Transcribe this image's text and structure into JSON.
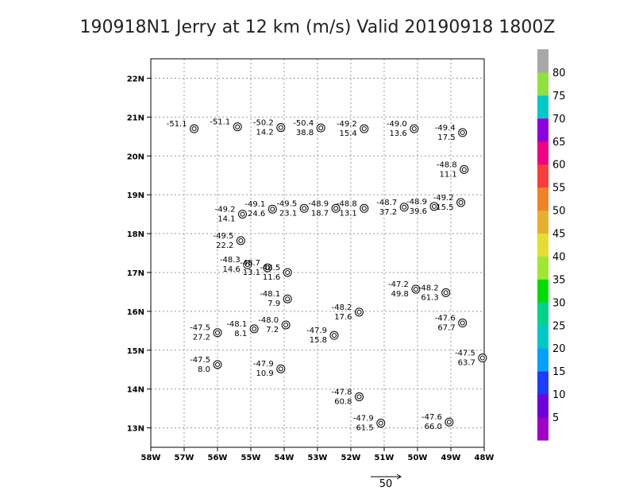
{
  "chart_data": {
    "type": "scatter",
    "title": "190918N1 Jerry at 12 km (m/s) Valid 20190918 1800Z",
    "xlim": [
      -58,
      -48
    ],
    "ylim": [
      12.5,
      22.5
    ],
    "x_ticks": [
      {
        "v": -58,
        "label": "58W"
      },
      {
        "v": -57,
        "label": "57W"
      },
      {
        "v": -56,
        "label": "56W"
      },
      {
        "v": -55,
        "label": "55W"
      },
      {
        "v": -54,
        "label": "54W"
      },
      {
        "v": -53,
        "label": "53W"
      },
      {
        "v": -52,
        "label": "52W"
      },
      {
        "v": -51,
        "label": "51W"
      },
      {
        "v": -50,
        "label": "50W"
      },
      {
        "v": -49,
        "label": "49W"
      },
      {
        "v": -48,
        "label": "48W"
      }
    ],
    "y_ticks": [
      {
        "v": 13,
        "label": "13N"
      },
      {
        "v": 14,
        "label": "14N"
      },
      {
        "v": 15,
        "label": "15N"
      },
      {
        "v": 16,
        "label": "16N"
      },
      {
        "v": 17,
        "label": "17N"
      },
      {
        "v": 18,
        "label": "18N"
      },
      {
        "v": 19,
        "label": "19N"
      },
      {
        "v": 20,
        "label": "20N"
      },
      {
        "v": 21,
        "label": "21N"
      },
      {
        "v": 22,
        "label": "22N"
      }
    ],
    "grid": true,
    "reference_vector": {
      "label": "50",
      "speed": 50
    },
    "colorbar": {
      "labels": [
        "5",
        "10",
        "15",
        "20",
        "25",
        "30",
        "35",
        "40",
        "45",
        "50",
        "55",
        "60",
        "65",
        "70",
        "75",
        "80"
      ],
      "colors": [
        "#a000c8",
        "#6e00dc",
        "#1e3cff",
        "#00a0ff",
        "#00c8c8",
        "#00d28c",
        "#00dc00",
        "#a0e632",
        "#e6dc32",
        "#e6af2d",
        "#f08228",
        "#fa3c3c",
        "#f00082",
        "#8c00e0",
        "#00c8c8",
        "#90e040",
        "#a8a8a8"
      ]
    },
    "points": [
      {
        "lon": -56.7,
        "lat": 20.7,
        "temp": "-51.1",
        "speed": ""
      },
      {
        "lon": -55.4,
        "lat": 20.75,
        "temp": "-51.1",
        "speed": ""
      },
      {
        "lon": -54.1,
        "lat": 20.73,
        "temp": "-50.2",
        "speed": "14.2"
      },
      {
        "lon": -52.9,
        "lat": 20.72,
        "temp": "-50.4",
        "speed": "38.8"
      },
      {
        "lon": -51.6,
        "lat": 20.7,
        "temp": "-49.2",
        "speed": "15.4"
      },
      {
        "lon": -50.1,
        "lat": 20.7,
        "temp": "-49.0",
        "speed": "13.6"
      },
      {
        "lon": -48.65,
        "lat": 20.6,
        "temp": "-49.4",
        "speed": "17.5"
      },
      {
        "lon": -48.6,
        "lat": 19.65,
        "temp": "-48.8",
        "speed": "11.1"
      },
      {
        "lon": -55.25,
        "lat": 18.5,
        "temp": "-49.2",
        "speed": "14.1"
      },
      {
        "lon": -54.35,
        "lat": 18.63,
        "temp": "-49.1",
        "speed": "24.6"
      },
      {
        "lon": -53.4,
        "lat": 18.65,
        "temp": "-49.5",
        "speed": "23.1"
      },
      {
        "lon": -52.45,
        "lat": 18.65,
        "temp": "-48.9",
        "speed": "18.7"
      },
      {
        "lon": -51.6,
        "lat": 18.65,
        "temp": "-48.8",
        "speed": "13.1"
      },
      {
        "lon": -50.4,
        "lat": 18.68,
        "temp": "-48.7",
        "speed": "37.2"
      },
      {
        "lon": -49.5,
        "lat": 18.7,
        "temp": "-48.9",
        "speed": "39.6"
      },
      {
        "lon": -48.7,
        "lat": 18.8,
        "temp": "-49.2",
        "speed": "15.5"
      },
      {
        "lon": -55.3,
        "lat": 17.82,
        "temp": "-49.5",
        "speed": "22.2"
      },
      {
        "lon": -55.1,
        "lat": 17.2,
        "temp": "-48.3",
        "speed": "14.6"
      },
      {
        "lon": -54.5,
        "lat": 17.12,
        "temp": "-48.7",
        "speed": "13.1"
      },
      {
        "lon": -53.9,
        "lat": 17.0,
        "temp": "-48.5",
        "speed": "11.6"
      },
      {
        "lon": -53.9,
        "lat": 16.32,
        "temp": "-48.1",
        "speed": "7.9"
      },
      {
        "lon": -50.05,
        "lat": 16.57,
        "temp": "-47.2",
        "speed": "49.8"
      },
      {
        "lon": -49.15,
        "lat": 16.48,
        "temp": "-48.2",
        "speed": "61.3"
      },
      {
        "lon": -51.75,
        "lat": 15.98,
        "temp": "-48.2",
        "speed": "17.6"
      },
      {
        "lon": -53.95,
        "lat": 15.65,
        "temp": "-48.0",
        "speed": "7.2"
      },
      {
        "lon": -54.9,
        "lat": 15.55,
        "temp": "-48.1",
        "speed": "8.1"
      },
      {
        "lon": -56.0,
        "lat": 15.45,
        "temp": "-47.5",
        "speed": "27.2"
      },
      {
        "lon": -52.5,
        "lat": 15.38,
        "temp": "-47.9",
        "speed": "15.8"
      },
      {
        "lon": -48.65,
        "lat": 15.7,
        "temp": "-47.6",
        "speed": "67.7"
      },
      {
        "lon": -48.05,
        "lat": 14.8,
        "temp": "-47.5",
        "speed": "63.7"
      },
      {
        "lon": -56.0,
        "lat": 14.63,
        "temp": "-47.5",
        "speed": "8.0"
      },
      {
        "lon": -54.1,
        "lat": 14.52,
        "temp": "-47.9",
        "speed": "10.9"
      },
      {
        "lon": -51.75,
        "lat": 13.8,
        "temp": "-47.8",
        "speed": "60.8"
      },
      {
        "lon": -51.1,
        "lat": 13.12,
        "temp": "-47.9",
        "speed": "61.5"
      },
      {
        "lon": -49.05,
        "lat": 13.15,
        "temp": "-47.6",
        "speed": "66.0"
      }
    ]
  }
}
